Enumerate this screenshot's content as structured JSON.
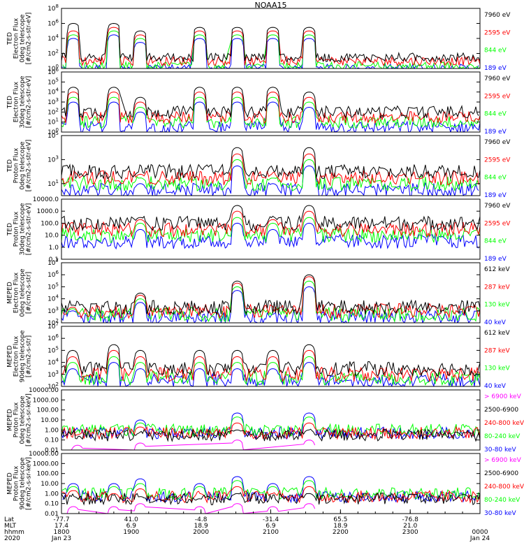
{
  "title": "NOAA15",
  "colors": {
    "black": "#000000",
    "red": "#ff0000",
    "green": "#00ff00",
    "blue": "#0000ff",
    "magenta": "#ff00ff"
  },
  "chart_data": [
    {
      "type": "scatter",
      "ylabel": [
        "TED",
        "Electron Flux",
        "0deg telescope",
        "[#/cm2-s-str-eV]"
      ],
      "yscale": "log",
      "yticks": [
        "10^0",
        "10^2",
        "10^4",
        "10^6",
        "10^8"
      ],
      "ylim": [
        1,
        100000000
      ],
      "legend": [
        {
          "label": "7960 eV",
          "color": "#000000"
        },
        {
          "label": "2595 eV",
          "color": "#ff0000"
        },
        {
          "label": "844 eV",
          "color": "#00ff00"
        },
        {
          "label": "189 eV",
          "color": "#0000ff"
        }
      ],
      "baseline": [
        30,
        10,
        2,
        1
      ],
      "peaks": [
        {
          "t": 1.7,
          "v": [
            1000000,
            100000,
            30000,
            10000
          ]
        },
        {
          "t": 7.5,
          "v": [
            1000000,
            300000,
            100000,
            30000
          ]
        },
        {
          "t": 11.3,
          "v": [
            100000,
            30000,
            10000,
            3000
          ]
        },
        {
          "t": 19.8,
          "v": [
            300000,
            100000,
            30000,
            10000
          ]
        },
        {
          "t": 25.2,
          "v": [
            300000,
            100000,
            30000,
            10000
          ]
        },
        {
          "t": 30.3,
          "v": [
            300000,
            100000,
            30000,
            10000
          ]
        },
        {
          "t": 35.5,
          "v": [
            300000,
            100000,
            30000,
            10000
          ]
        }
      ]
    },
    {
      "type": "scatter",
      "ylabel": [
        "TED",
        "Electron Flux",
        "30deg telescope",
        "[#/cm2-s-str-eV]"
      ],
      "yscale": "log",
      "yticks": [
        "10^0",
        "10^1",
        "10^2",
        "10^3",
        "10^4",
        "10^5",
        "10^6"
      ],
      "ylim": [
        1,
        1000000
      ],
      "legend": [
        {
          "label": "7960 eV",
          "color": "#000000"
        },
        {
          "label": "2595 eV",
          "color": "#ff0000"
        },
        {
          "label": "844 eV",
          "color": "#00ff00"
        },
        {
          "label": "189 eV",
          "color": "#0000ff"
        }
      ],
      "baseline": [
        100,
        30,
        10,
        3
      ],
      "peaks": [
        {
          "t": 1.7,
          "v": [
            30000,
            10000,
            3000,
            1000
          ]
        },
        {
          "t": 7.5,
          "v": [
            30000,
            10000,
            3000,
            1000
          ]
        },
        {
          "t": 11.3,
          "v": [
            3000,
            1000,
            300,
            100
          ]
        },
        {
          "t": 19.8,
          "v": [
            30000,
            10000,
            3000,
            1000
          ]
        },
        {
          "t": 25.2,
          "v": [
            30000,
            10000,
            3000,
            1000
          ]
        },
        {
          "t": 30.3,
          "v": [
            30000,
            10000,
            3000,
            1000
          ]
        },
        {
          "t": 35.5,
          "v": [
            10000,
            3000,
            1000,
            300
          ]
        }
      ]
    },
    {
      "type": "scatter",
      "ylabel": [
        "TED",
        "Proton Flux",
        "0deg telescope",
        "[#/cm2-s-str-eV]"
      ],
      "yscale": "log",
      "yticks": [
        "10^1",
        "10^3",
        "10^5"
      ],
      "ylim": [
        1,
        100000
      ],
      "legend": [
        {
          "label": "7960 eV",
          "color": "#000000"
        },
        {
          "label": "2595 eV",
          "color": "#ff0000"
        },
        {
          "label": "844 eV",
          "color": "#00ff00"
        },
        {
          "label": "189 eV",
          "color": "#0000ff"
        }
      ],
      "baseline": [
        100,
        30,
        10,
        3
      ],
      "peaks": [
        {
          "t": 11.3,
          "v": [
            100,
            60,
            30,
            10
          ]
        },
        {
          "t": 25.2,
          "v": [
            10000,
            3000,
            1000,
            300
          ]
        },
        {
          "t": 30.3,
          "v": [
            100,
            60,
            30,
            10
          ]
        },
        {
          "t": 35.5,
          "v": [
            10000,
            3000,
            1000,
            300
          ]
        }
      ]
    },
    {
      "type": "scatter",
      "ylabel": [
        "TED",
        "Proton Flux",
        "30deg telescope",
        "[#/cm2-s-str-eV]"
      ],
      "yscale": "log",
      "yticks": [
        "0.1",
        "1.0",
        "10.0",
        "100.0",
        "1000.0",
        "10000.0"
      ],
      "ylim": [
        0.1,
        10000
      ],
      "legend": [
        {
          "label": "7960 eV",
          "color": "#000000"
        },
        {
          "label": "2595 eV",
          "color": "#ff0000"
        },
        {
          "label": "844 eV",
          "color": "#00ff00"
        },
        {
          "label": "189 eV",
          "color": "#0000ff"
        }
      ],
      "baseline": [
        100,
        30,
        10,
        3
      ],
      "peaks": [
        {
          "t": 11.3,
          "v": [
            300,
            200,
            100,
            30
          ]
        },
        {
          "t": 25.2,
          "v": [
            3000,
            1000,
            300,
            100
          ]
        },
        {
          "t": 30.3,
          "v": [
            300,
            200,
            100,
            30
          ]
        },
        {
          "t": 35.5,
          "v": [
            3000,
            1000,
            300,
            100
          ]
        }
      ]
    },
    {
      "type": "scatter",
      "ylabel": [
        "MEPED",
        "Electron Flux",
        "0deg telescope",
        "[#/cm2-s-str]"
      ],
      "yscale": "log",
      "yticks": [
        "10^2",
        "10^3",
        "10^4",
        "10^5",
        "10^6",
        "10^7"
      ],
      "ylim": [
        100,
        10000000
      ],
      "legend": [
        {
          "label": "612 keV",
          "color": "#000000"
        },
        {
          "label": "287 keV",
          "color": "#ff0000"
        },
        {
          "label": "130 keV",
          "color": "#00ff00"
        },
        {
          "label": "40 keV",
          "color": "#0000ff"
        }
      ],
      "baseline": [
        2000,
        1000,
        500,
        300
      ],
      "peaks": [
        {
          "t": 1.6,
          "v": [
            3000,
            2000,
            1500,
            1000
          ]
        },
        {
          "t": 11.3,
          "v": [
            30000,
            20000,
            10000,
            5000
          ]
        },
        {
          "t": 25.2,
          "v": [
            300000,
            200000,
            100000,
            50000
          ]
        },
        {
          "t": 35.5,
          "v": [
            1000000,
            700000,
            300000,
            100000
          ]
        }
      ]
    },
    {
      "type": "scatter",
      "ylabel": [
        "MEPED",
        "Electron Flux",
        "90deg telescope",
        "[#/cm2-s-str]"
      ],
      "yscale": "log",
      "yticks": [
        "10^2",
        "10^3",
        "10^4",
        "10^5",
        "10^6",
        "10^7"
      ],
      "ylim": [
        100,
        10000000
      ],
      "legend": [
        {
          "label": "612 keV",
          "color": "#000000"
        },
        {
          "label": "287 keV",
          "color": "#ff0000"
        },
        {
          "label": "130 keV",
          "color": "#00ff00"
        },
        {
          "label": "40 keV",
          "color": "#0000ff"
        }
      ],
      "baseline": [
        3000,
        1000,
        500,
        300
      ],
      "peaks": [
        {
          "t": 1.6,
          "v": [
            100000,
            30000,
            10000,
            3000
          ]
        },
        {
          "t": 7.5,
          "v": [
            300000,
            100000,
            30000,
            10000
          ]
        },
        {
          "t": 11.3,
          "v": [
            100000,
            30000,
            10000,
            3000
          ]
        },
        {
          "t": 19.8,
          "v": [
            100000,
            30000,
            10000,
            3000
          ]
        },
        {
          "t": 25.2,
          "v": [
            100000,
            30000,
            10000,
            3000
          ]
        },
        {
          "t": 30.3,
          "v": [
            100000,
            30000,
            10000,
            3000
          ]
        },
        {
          "t": 35.5,
          "v": [
            300000,
            100000,
            30000,
            10000
          ]
        }
      ]
    },
    {
      "type": "scatter",
      "ylabel": [
        "MEPED",
        "Proton Flux",
        "0deg telescope",
        "[#/cm2-s-sr-keV]"
      ],
      "yscale": "log",
      "yticks": [
        "0.01",
        "0.10",
        "1.00",
        "10.00",
        "100.00",
        "1000.00",
        "10000.00"
      ],
      "ylim": [
        0.01,
        10000
      ],
      "legend": [
        {
          "label": "> 6900 keV",
          "color": "#ff00ff"
        },
        {
          "label": "2500-6900",
          "color": "#000000"
        },
        {
          "label": "240-800 keV",
          "color": "#ff0000"
        },
        {
          "label": "80-240 keV",
          "color": "#00ff00"
        },
        {
          "label": "30-80 keV",
          "color": "#0000ff"
        }
      ],
      "baseline": [
        0,
        0.3,
        0.5,
        1,
        0.5
      ],
      "peaks": [
        {
          "t": 2.3,
          "v": [
            0.03,
            0.1,
            0.3,
            0.6,
            1
          ]
        },
        {
          "t": 11.3,
          "v": [
            0.05,
            0.5,
            2,
            5,
            10
          ]
        },
        {
          "t": 25.2,
          "v": [
            0.1,
            1,
            5,
            20,
            50
          ]
        },
        {
          "t": 35.5,
          "v": [
            0.1,
            1,
            5,
            20,
            50
          ]
        }
      ]
    },
    {
      "type": "scatter",
      "ylabel": [
        "MEPED",
        "Proton Flux",
        "90deg telescope",
        "[#/cm2-s-sr-keV]"
      ],
      "yscale": "log",
      "yticks": [
        "0.01",
        "0.10",
        "1.00",
        "10.00",
        "100.00",
        "1000.00",
        "10000.00"
      ],
      "ylim": [
        0.01,
        10000
      ],
      "legend": [
        {
          "label": "> 6900 keV",
          "color": "#ff00ff"
        },
        {
          "label": "2500-6900",
          "color": "#000000"
        },
        {
          "label": "240-800 keV",
          "color": "#ff0000"
        },
        {
          "label": "80-240 keV",
          "color": "#00ff00"
        },
        {
          "label": "30-80 keV",
          "color": "#0000ff"
        }
      ],
      "baseline": [
        0,
        0.3,
        0.5,
        1,
        0.5
      ],
      "peaks": [
        {
          "t": 1.7,
          "v": [
            0.05,
            0.5,
            2,
            5,
            10
          ]
        },
        {
          "t": 7.5,
          "v": [
            0.05,
            0.3,
            1,
            5,
            10
          ]
        },
        {
          "t": 11.3,
          "v": [
            0.1,
            0.5,
            3,
            10,
            30
          ]
        },
        {
          "t": 19.8,
          "v": [
            0.05,
            0.3,
            1,
            5,
            10
          ]
        },
        {
          "t": 25.2,
          "v": [
            0.1,
            1,
            5,
            20,
            50
          ]
        },
        {
          "t": 30.3,
          "v": [
            0.05,
            0.3,
            1,
            5,
            10
          ]
        },
        {
          "t": 35.5,
          "v": [
            0.1,
            1,
            5,
            20,
            50
          ]
        }
      ]
    }
  ],
  "x_axis": {
    "row_labels": [
      "Lat",
      "MLT",
      "hhmm",
      "2020"
    ],
    "columns": [
      {
        "at": "18:00",
        "lat": "-77.7",
        "mlt": "17.4",
        "hhmm": "1800",
        "date": "Jan 23"
      },
      {
        "at": "19:00",
        "lat": "41.0",
        "mlt": "6.9",
        "hhmm": "1900",
        "date": ""
      },
      {
        "at": "20:00",
        "lat": "-4.8",
        "mlt": "18.9",
        "hhmm": "2000",
        "date": ""
      },
      {
        "at": "21:00",
        "lat": "-31.4",
        "mlt": "6.9",
        "hhmm": "2100",
        "date": ""
      },
      {
        "at": "22:00",
        "lat": "65.5",
        "mlt": "18.9",
        "hhmm": "2200",
        "date": ""
      },
      {
        "at": "23:00",
        "lat": "-76.8",
        "mlt": "21.0",
        "hhmm": "2300",
        "date": ""
      },
      {
        "at": "24:00",
        "lat": "",
        "mlt": "",
        "hhmm": "0000",
        "date": "Jan 24"
      }
    ],
    "range": [
      "18:00",
      "24:00"
    ]
  }
}
